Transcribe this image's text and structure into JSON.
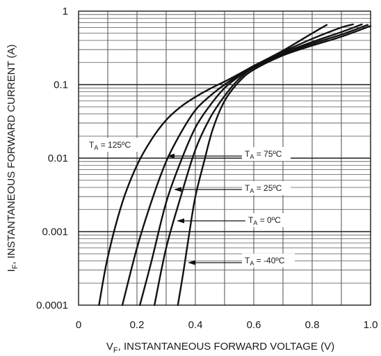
{
  "chart_data": {
    "type": "line",
    "xlabel_main": "V",
    "xlabel_sub": "F",
    "xlabel_rest": ", INSTANTANEOUS FORWARD VOLTAGE (V)",
    "ylabel_main": "I",
    "ylabel_sub": "F",
    "ylabel_rest": ", INSTANTANEOUS FORWARD CURRENT (A)",
    "xlim": [
      0,
      1.0
    ],
    "ylim": [
      0.0001,
      1
    ],
    "yscale": "log",
    "grid": true,
    "x_ticks": [
      "0",
      "0.2",
      "0.4",
      "0.6",
      "0.8",
      "1.0"
    ],
    "y_ticks": [
      "0.0001",
      "0.001",
      "0.01",
      "0.1",
      "1"
    ],
    "series": [
      {
        "name": "TA = 125ºC",
        "label_main": "T",
        "label_sub": "A",
        "label_rest": " = 125ºC",
        "x": [
          0.07,
          0.1,
          0.15,
          0.2,
          0.25,
          0.3,
          0.35,
          0.4,
          0.45,
          0.5,
          0.55,
          0.6,
          0.7,
          0.8,
          0.85
        ],
        "y": [
          0.0001,
          0.00045,
          0.0025,
          0.008,
          0.018,
          0.033,
          0.05,
          0.068,
          0.088,
          0.11,
          0.14,
          0.18,
          0.29,
          0.5,
          0.65
        ]
      },
      {
        "name": "TA = 75ºC",
        "label_main": "T",
        "label_sub": "A",
        "label_rest": " = 75ºC",
        "x": [
          0.15,
          0.2,
          0.25,
          0.3,
          0.35,
          0.4,
          0.45,
          0.5,
          0.55,
          0.6,
          0.7,
          0.8,
          0.9,
          0.94
        ],
        "y": [
          0.0001,
          0.0006,
          0.0026,
          0.009,
          0.022,
          0.045,
          0.07,
          0.1,
          0.135,
          0.18,
          0.28,
          0.42,
          0.6,
          0.66
        ]
      },
      {
        "name": "TA = 25ºC",
        "label_main": "T",
        "label_sub": "A",
        "label_rest": " = 25ºC",
        "x": [
          0.21,
          0.25,
          0.3,
          0.35,
          0.4,
          0.45,
          0.5,
          0.55,
          0.6,
          0.7,
          0.8,
          0.9,
          0.97
        ],
        "y": [
          0.0001,
          0.0004,
          0.0025,
          0.009,
          0.026,
          0.052,
          0.09,
          0.13,
          0.18,
          0.27,
          0.38,
          0.52,
          0.66
        ]
      },
      {
        "name": "TA = 0ºC",
        "label_main": "T",
        "label_sub": "A",
        "label_rest": " = 0ºC",
        "x": [
          0.26,
          0.3,
          0.35,
          0.4,
          0.45,
          0.5,
          0.55,
          0.6,
          0.7,
          0.8,
          0.9,
          0.99
        ],
        "y": [
          0.0001,
          0.0006,
          0.003,
          0.013,
          0.035,
          0.07,
          0.12,
          0.17,
          0.26,
          0.36,
          0.48,
          0.65
        ]
      },
      {
        "name": "TA = -40ºC",
        "label_main": "T",
        "label_sub": "A",
        "label_rest": " = -40ºC",
        "x": [
          0.34,
          0.36,
          0.38,
          0.4,
          0.43,
          0.46,
          0.5,
          0.55,
          0.6,
          0.7,
          0.8,
          0.9,
          1.0
        ],
        "y": [
          0.0001,
          0.0003,
          0.001,
          0.003,
          0.009,
          0.025,
          0.06,
          0.11,
          0.16,
          0.25,
          0.34,
          0.45,
          0.63
        ]
      }
    ],
    "annotations": [
      {
        "series": 0,
        "has_arrow": false
      },
      {
        "series": 1,
        "has_arrow": true
      },
      {
        "series": 2,
        "has_arrow": true
      },
      {
        "series": 3,
        "has_arrow": true
      },
      {
        "series": 4,
        "has_arrow": true
      }
    ]
  }
}
